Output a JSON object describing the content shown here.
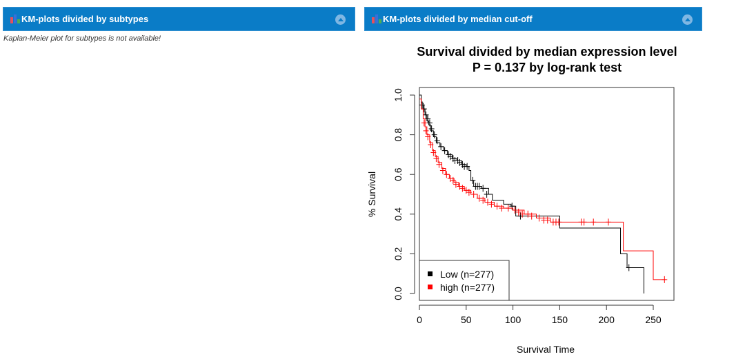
{
  "panels": [
    {
      "header": "KM-plots divided by subtypes",
      "icon": "bar-chart-icon",
      "message": "Kaplan-Meier plot for subtypes is not available!"
    },
    {
      "header": "KM-plots divided by median cut-off",
      "icon": "bar-chart-icon"
    }
  ],
  "colors": {
    "header_bg": "#0a7cc7",
    "low": "#000000",
    "high": "#ff0000",
    "icon_bars": [
      "#e8505b",
      "#3a6fd8",
      "#4caf50"
    ]
  },
  "chart_data": {
    "type": "line",
    "title": "Survival divided by median expression level",
    "subtitle": "P = 0.137 by log-rank test",
    "xlabel": "Survival Time",
    "ylabel": "% Survival",
    "xlim": [
      0,
      272
    ],
    "ylim": [
      0,
      1.04
    ],
    "xticks": [
      "0",
      "50",
      "100",
      "150",
      "200",
      "250"
    ],
    "xtick_values": [
      0,
      50,
      100,
      150,
      200,
      250
    ],
    "yticks": [
      "0.0",
      "0.2",
      "0.4",
      "0.6",
      "0.8",
      "1.0"
    ],
    "ytick_values": [
      0,
      0.2,
      0.4,
      0.6,
      0.8,
      1.0
    ],
    "grid": false,
    "legend_position": "bottom-left",
    "series": [
      {
        "name": "Low (n=277)",
        "color": "#000000",
        "steps": [
          [
            0,
            1.0
          ],
          [
            2,
            0.96
          ],
          [
            4,
            0.93
          ],
          [
            6,
            0.9
          ],
          [
            8,
            0.87
          ],
          [
            10,
            0.85
          ],
          [
            12,
            0.82
          ],
          [
            15,
            0.79
          ],
          [
            18,
            0.76
          ],
          [
            22,
            0.74
          ],
          [
            26,
            0.72
          ],
          [
            30,
            0.7
          ],
          [
            35,
            0.68
          ],
          [
            40,
            0.67
          ],
          [
            45,
            0.65
          ],
          [
            50,
            0.64
          ],
          [
            53,
            0.62
          ],
          [
            55,
            0.57
          ],
          [
            58,
            0.54
          ],
          [
            66,
            0.53
          ],
          [
            74,
            0.5
          ],
          [
            78,
            0.47
          ],
          [
            90,
            0.45
          ],
          [
            98,
            0.44
          ],
          [
            103,
            0.39
          ],
          [
            150,
            0.33
          ],
          [
            210,
            0.33
          ],
          [
            215,
            0.2
          ],
          [
            222,
            0.13
          ],
          [
            240,
            0.13
          ],
          [
            240,
            0.0
          ]
        ],
        "censor": [
          [
            3,
            0.95
          ],
          [
            5,
            0.93
          ],
          [
            7,
            0.9
          ],
          [
            9,
            0.88
          ],
          [
            11,
            0.86
          ],
          [
            13,
            0.83
          ],
          [
            16,
            0.8
          ],
          [
            19,
            0.77
          ],
          [
            23,
            0.74
          ],
          [
            27,
            0.72
          ],
          [
            31,
            0.7
          ],
          [
            33,
            0.69
          ],
          [
            36,
            0.68
          ],
          [
            38,
            0.67
          ],
          [
            41,
            0.67
          ],
          [
            43,
            0.66
          ],
          [
            46,
            0.65
          ],
          [
            48,
            0.64
          ],
          [
            51,
            0.64
          ],
          [
            57,
            0.57
          ],
          [
            60,
            0.54
          ],
          [
            62,
            0.54
          ],
          [
            64,
            0.54
          ],
          [
            68,
            0.53
          ],
          [
            72,
            0.5
          ],
          [
            99,
            0.44
          ],
          [
            108,
            0.39
          ],
          [
            224,
            0.13
          ]
        ]
      },
      {
        "name": "high (n=277)",
        "color": "#ff0000",
        "steps": [
          [
            0,
            0.98
          ],
          [
            2,
            0.93
          ],
          [
            4,
            0.88
          ],
          [
            6,
            0.84
          ],
          [
            8,
            0.8
          ],
          [
            11,
            0.76
          ],
          [
            14,
            0.72
          ],
          [
            17,
            0.69
          ],
          [
            20,
            0.66
          ],
          [
            24,
            0.63
          ],
          [
            28,
            0.6
          ],
          [
            32,
            0.58
          ],
          [
            37,
            0.56
          ],
          [
            42,
            0.54
          ],
          [
            48,
            0.52
          ],
          [
            55,
            0.5
          ],
          [
            62,
            0.48
          ],
          [
            70,
            0.46
          ],
          [
            80,
            0.44
          ],
          [
            90,
            0.43
          ],
          [
            100,
            0.42
          ],
          [
            112,
            0.4
          ],
          [
            125,
            0.38
          ],
          [
            140,
            0.36
          ],
          [
            218,
            0.36
          ],
          [
            218,
            0.215
          ],
          [
            250,
            0.215
          ],
          [
            250,
            0.07
          ],
          [
            263,
            0.07
          ]
        ],
        "censor": [
          [
            5,
            0.86
          ],
          [
            7,
            0.82
          ],
          [
            9,
            0.79
          ],
          [
            12,
            0.75
          ],
          [
            15,
            0.71
          ],
          [
            18,
            0.68
          ],
          [
            21,
            0.65
          ],
          [
            25,
            0.62
          ],
          [
            29,
            0.6
          ],
          [
            33,
            0.58
          ],
          [
            36,
            0.57
          ],
          [
            39,
            0.55
          ],
          [
            43,
            0.54
          ],
          [
            46,
            0.53
          ],
          [
            50,
            0.52
          ],
          [
            53,
            0.51
          ],
          [
            58,
            0.5
          ],
          [
            64,
            0.48
          ],
          [
            68,
            0.47
          ],
          [
            73,
            0.46
          ],
          [
            77,
            0.45
          ],
          [
            83,
            0.44
          ],
          [
            88,
            0.43
          ],
          [
            95,
            0.43
          ],
          [
            102,
            0.42
          ],
          [
            106,
            0.41
          ],
          [
            110,
            0.4
          ],
          [
            116,
            0.4
          ],
          [
            120,
            0.39
          ],
          [
            128,
            0.38
          ],
          [
            133,
            0.37
          ],
          [
            137,
            0.37
          ],
          [
            143,
            0.36
          ],
          [
            146,
            0.36
          ],
          [
            149,
            0.36
          ],
          [
            173,
            0.36
          ],
          [
            176,
            0.36
          ],
          [
            186,
            0.36
          ],
          [
            202,
            0.36
          ],
          [
            262,
            0.07
          ]
        ]
      }
    ]
  }
}
